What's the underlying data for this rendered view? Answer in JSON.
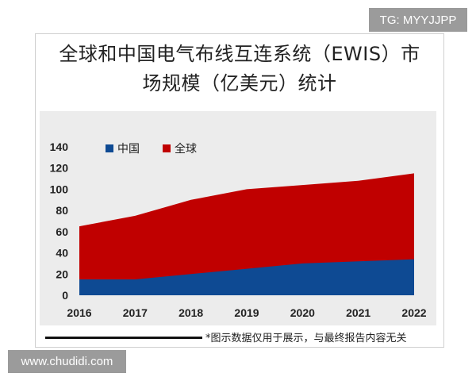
{
  "badges": {
    "top_right": "TG: MYYJJPP",
    "bottom_left": "www.chudidi.com"
  },
  "title_line1": "全球和中国电气布线互连系统（EWIS）市",
  "title_line2": "场规模（亿美元）统计",
  "footnote": "*图示数据仅用于展示，与最终报告内容无关",
  "colors": {
    "china": "#0e4a93",
    "global": "#c00000",
    "plot_background": "#ececec"
  },
  "chart_data": {
    "type": "area",
    "title": "全球和中国电气布线互连系统（EWIS）市场规模（亿美元）统计",
    "x": [
      "2016",
      "2017",
      "2018",
      "2019",
      "2020",
      "2021",
      "2022"
    ],
    "ylim": [
      0,
      140
    ],
    "yticks": [
      0,
      20,
      40,
      60,
      80,
      100,
      120,
      140
    ],
    "legend_position": "top-left",
    "grid": false,
    "stacked": false,
    "series": [
      {
        "name": "中国",
        "color": "#0e4a93",
        "values": [
          15,
          15,
          20,
          25,
          30,
          32,
          34
        ]
      },
      {
        "name": "全球",
        "color": "#c00000",
        "values": [
          65,
          75,
          90,
          100,
          104,
          108,
          115
        ]
      }
    ]
  }
}
